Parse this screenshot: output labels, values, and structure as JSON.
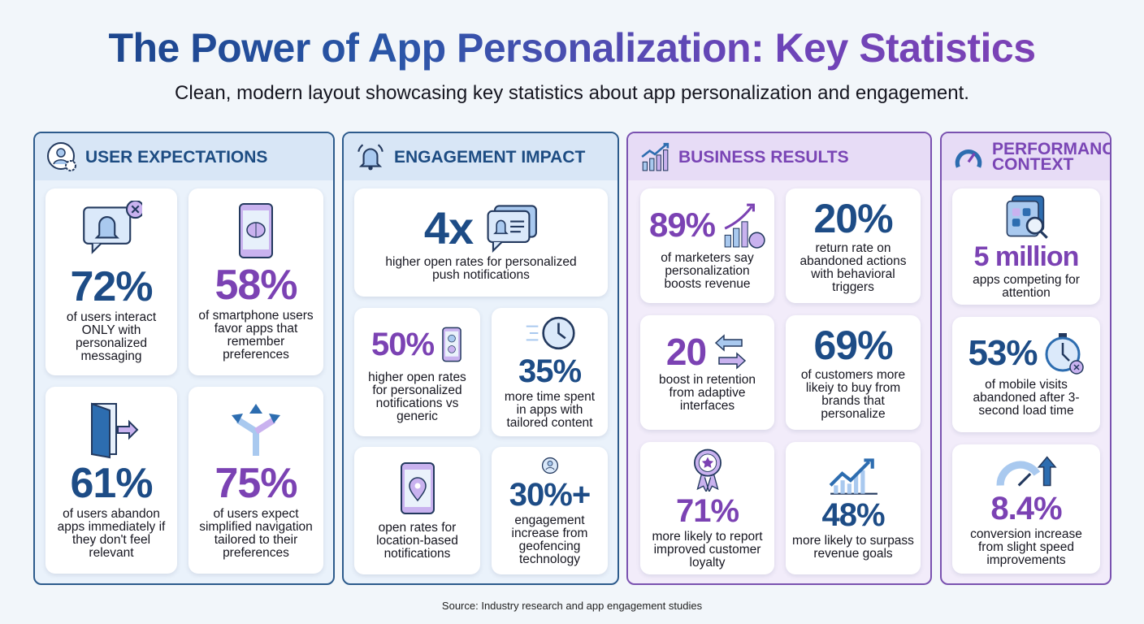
{
  "header": {
    "title": "The Power of App Personalization: Key Statistics",
    "subtitle": "Clean, modern layout showcasing key statistics about app personalization and engagement."
  },
  "colors": {
    "blue": "#1d4c86",
    "purple": "#7b42b3",
    "background": "#f2f6fa"
  },
  "panels": [
    {
      "title": "USER EXPECTATIONS",
      "icon": "user-gear-icon",
      "theme": "blue",
      "cards": [
        {
          "value": "72%",
          "text": "of users interact ONLY with personalized messaging",
          "icon": "bell-notification-x-icon",
          "color": "blue"
        },
        {
          "value": "58%",
          "text": "of smartphone users favor apps that remember preferences",
          "icon": "phone-brain-icon",
          "color": "purple"
        },
        {
          "value": "61%",
          "text": "of users abandon apps immediately if they don't feel relevant",
          "icon": "door-exit-icon",
          "color": "blue"
        },
        {
          "value": "75%",
          "text": "of users expect simplified navigation tailored to their preferences",
          "icon": "split-arrows-icon",
          "color": "purple"
        }
      ]
    },
    {
      "title": "ENGAGEMENT IMPACT",
      "icon": "bell-icon",
      "theme": "blue",
      "cards": [
        {
          "value": "4x",
          "text": "higher open rates for personalized push notifications",
          "icon": "chat-bell-icon",
          "color": "blue"
        },
        {
          "value": "50%",
          "text": "higher open rates for personalized notifications vs generic",
          "icon": "phone-profile-icon",
          "color": "purple"
        },
        {
          "value": "35%",
          "text": "more time spent in apps with tailored content",
          "icon": "clock-icon",
          "color": "blue"
        },
        {
          "value": "",
          "text": "open rates for location-based notifications",
          "icon": "phone-location-icon",
          "color": "blue"
        },
        {
          "value": "30%+",
          "text": "engagement increase from geofencing technology",
          "icon": "geofence-person-icon",
          "color": "blue"
        }
      ]
    },
    {
      "title": "BUSINESS RESULTS",
      "icon": "growth-chart-icon",
      "theme": "purple",
      "cards": [
        {
          "value": "89%",
          "text": "of marketers say personalization boosts revenue",
          "icon": "chart-money-icon",
          "color": "purple"
        },
        {
          "value": "20%",
          "text": "return rate on abandoned actions with behavioral triggers",
          "icon": "",
          "color": "blue"
        },
        {
          "value": "20",
          "text": "boost in retention from adaptive interfaces",
          "icon": "swap-arrows-icon",
          "color": "purple"
        },
        {
          "value": "69%",
          "text": "of customers more likeiy to buy from brands that personalize",
          "icon": "",
          "color": "blue"
        },
        {
          "value": "71%",
          "text": "more likely to report improved customer loyalty",
          "icon": "award-badge-icon",
          "color": "purple"
        },
        {
          "value": "48%",
          "text": "more likely to surpass revenue goals",
          "icon": "chart-up-icon",
          "color": "blue"
        }
      ]
    },
    {
      "title": "PERFORMANCE CONTEXT",
      "icon": "speedometer-icon",
      "theme": "purple",
      "cards": [
        {
          "value": "5 million",
          "text": "apps competing for attention",
          "icon": "app-search-icon",
          "color": "purple"
        },
        {
          "value": "53%",
          "text": "of mobile visits abandoned after 3-second load time",
          "icon": "stopwatch-x-icon",
          "color": "blue"
        },
        {
          "value": "8.4%",
          "text": "conversion increase from slight speed improvements",
          "icon": "gauge-up-icon",
          "color": "purple"
        }
      ]
    }
  ],
  "footer": {
    "source": "Source: Industry research and app engagement studies"
  }
}
